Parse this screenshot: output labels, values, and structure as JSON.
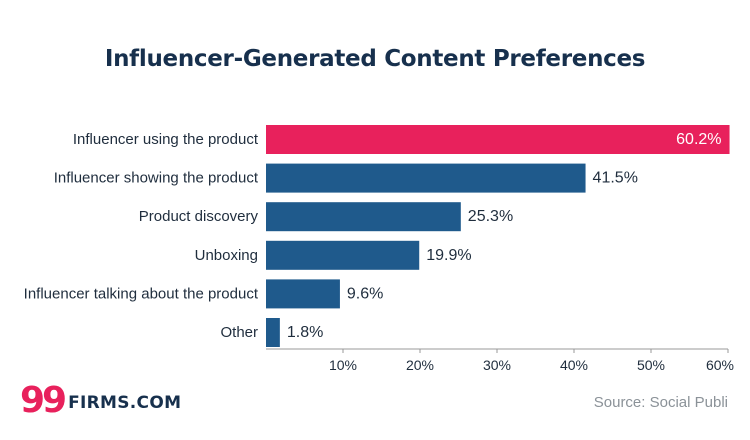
{
  "chart_data": {
    "type": "bar",
    "orientation": "horizontal",
    "title": "Influencer-Generated Content Preferences",
    "categories": [
      "Influencer using the product",
      "Influencer showing the product",
      "Product discovery",
      "Unboxing",
      "Influencer talking about the product",
      "Other"
    ],
    "values": [
      60.2,
      41.5,
      25.3,
      19.9,
      9.6,
      1.8
    ],
    "value_labels": [
      "60.2%",
      "41.5%",
      "25.3%",
      "19.9%",
      "9.6%",
      "1.8%"
    ],
    "highlight_index": 0,
    "xlim": [
      0,
      60
    ],
    "x_ticks": [
      {
        "value": 10,
        "label": "10%"
      },
      {
        "value": 20,
        "label": "20%"
      },
      {
        "value": 30,
        "label": "30%"
      },
      {
        "value": 40,
        "label": "40%"
      },
      {
        "value": 50,
        "label": "50%"
      },
      {
        "value": 60,
        "label": "60%"
      }
    ],
    "grid": false,
    "legend": "none",
    "colors": {
      "bar": "#1f5a8c",
      "highlight_bar": "#e8215c",
      "text": "#1f2d3d",
      "title": "#17304d",
      "axis": "#999999",
      "highlight_label": "#ffffff"
    }
  },
  "brand": {
    "mark": "99",
    "text": "FIRMS.COM"
  },
  "source": "Source: Social Publi"
}
